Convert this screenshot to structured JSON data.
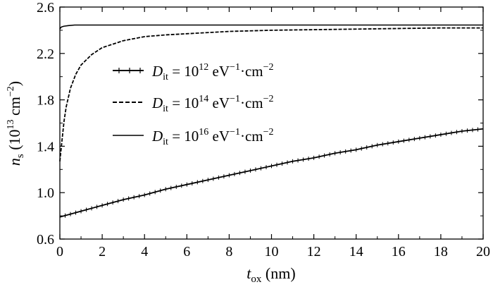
{
  "chart_data": {
    "type": "line",
    "xlabel": {
      "main": "t",
      "sub": "ox",
      "unit": " (nm)"
    },
    "ylabel": {
      "main": "n",
      "sub": "s",
      "pre": " (10",
      "exp": "13",
      "mid": " cm",
      "exp2": "−2",
      "post": ")"
    },
    "xlim": [
      0,
      20
    ],
    "ylim": [
      0.6,
      2.6
    ],
    "x_ticks": [
      "0",
      "2",
      "4",
      "6",
      "8",
      "10",
      "12",
      "14",
      "16",
      "18",
      "20"
    ],
    "y_ticks": [
      "0.6",
      "1.0",
      "1.4",
      "1.8",
      "2.2",
      "2.6"
    ],
    "grid": false,
    "legend_position": "center-left",
    "series": [
      {
        "legend": {
          "sym": "D",
          "sub": "it",
          "eq": " = 10",
          "exp": "12",
          "unit": " eV",
          "exp2": "−1",
          "mid": "·cm",
          "exp3": "−2"
        },
        "style": "solid-ticks",
        "x": [
          0,
          1,
          2,
          3,
          4,
          5,
          6,
          7,
          8,
          9,
          10,
          11,
          12,
          13,
          14,
          15,
          16,
          17,
          18,
          19,
          20
        ],
        "y": [
          0.79,
          0.84,
          0.89,
          0.94,
          0.98,
          1.03,
          1.07,
          1.11,
          1.15,
          1.19,
          1.23,
          1.27,
          1.3,
          1.34,
          1.37,
          1.41,
          1.44,
          1.47,
          1.5,
          1.53,
          1.55
        ]
      },
      {
        "legend": {
          "sym": "D",
          "sub": "it",
          "eq": " = 10",
          "exp": "14",
          "unit": " eV",
          "exp2": "−1",
          "mid": "·cm",
          "exp3": "−2"
        },
        "style": "dashed",
        "x": [
          0,
          0.1,
          0.2,
          0.3,
          0.5,
          0.75,
          1,
          1.5,
          2,
          3,
          4,
          5,
          6,
          8,
          10,
          12,
          14,
          16,
          18,
          20
        ],
        "y": [
          1.27,
          1.45,
          1.62,
          1.74,
          1.9,
          2.02,
          2.1,
          2.19,
          2.25,
          2.31,
          2.345,
          2.36,
          2.37,
          2.39,
          2.4,
          2.405,
          2.41,
          2.415,
          2.42,
          2.42
        ]
      },
      {
        "legend": {
          "sym": "D",
          "sub": "it",
          "eq": " = 10",
          "exp": "16",
          "unit": " eV",
          "exp2": "−1",
          "mid": "·cm",
          "exp3": "−2"
        },
        "style": "solid",
        "x": [
          0,
          0.05,
          0.1,
          0.2,
          0.4,
          0.7,
          1,
          2,
          4,
          6,
          8,
          10,
          12,
          14,
          16,
          18,
          20
        ],
        "y": [
          2.41,
          2.425,
          2.43,
          2.435,
          2.44,
          2.445,
          2.445,
          2.445,
          2.445,
          2.445,
          2.445,
          2.445,
          2.445,
          2.445,
          2.445,
          2.445,
          2.445
        ]
      }
    ]
  }
}
